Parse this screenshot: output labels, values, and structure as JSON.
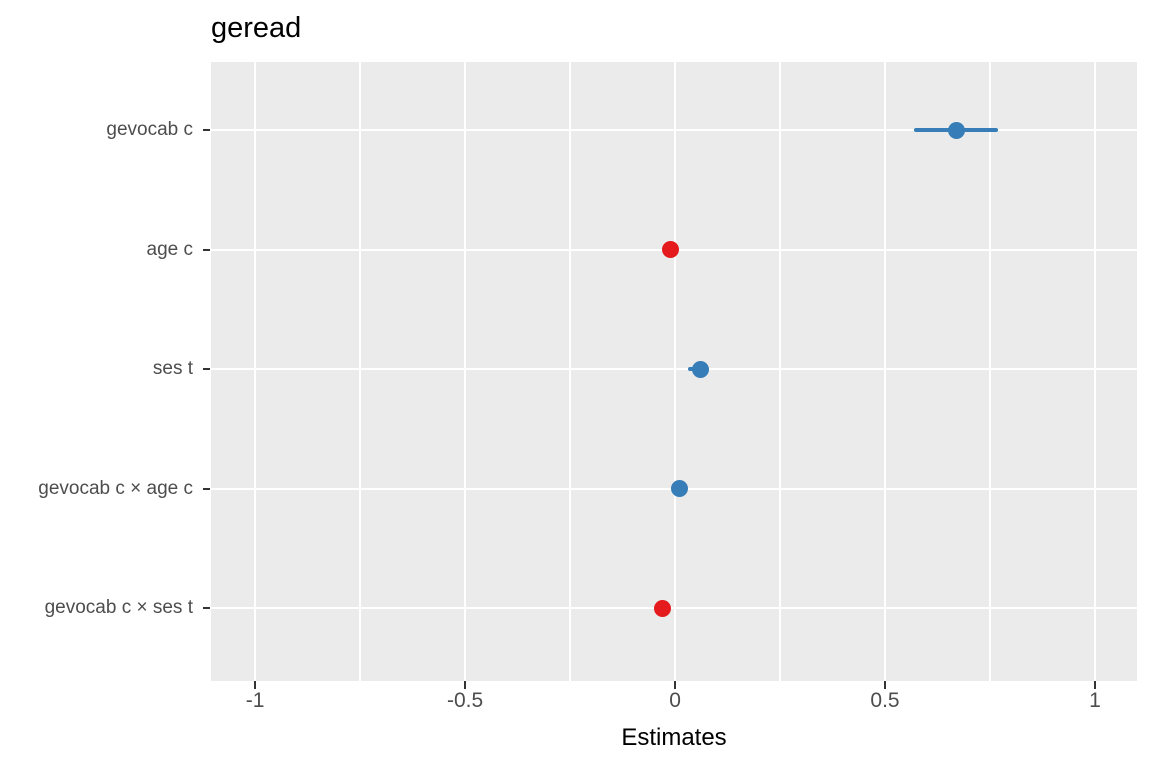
{
  "title": "geread",
  "chart_data": {
    "type": "scatter",
    "subtype": "coefficient-dot-whisker-plot",
    "title": "geread",
    "xlabel": "Estimates",
    "ylabel": "",
    "legend": "none",
    "grid": "on",
    "categories": [
      "gevocab c",
      "age c",
      "ses t",
      "gevocab c × age c",
      "gevocab c × ses t"
    ],
    "points": [
      {
        "term": "gevocab c",
        "estimate": 0.67,
        "ci_low": 0.57,
        "ci_high": 0.77,
        "direction": "positive"
      },
      {
        "term": "age c",
        "estimate": -0.01,
        "ci_low": -0.01,
        "ci_high": -0.01,
        "direction": "negative"
      },
      {
        "term": "ses t",
        "estimate": 0.06,
        "ci_low": 0.03,
        "ci_high": 0.08,
        "direction": "positive"
      },
      {
        "term": "gevocab c × age c",
        "estimate": 0.01,
        "ci_low": 0.01,
        "ci_high": 0.01,
        "direction": "positive"
      },
      {
        "term": "gevocab c × ses t",
        "estimate": -0.03,
        "ci_low": -0.03,
        "ci_high": -0.03,
        "direction": "negative"
      }
    ],
    "x_ticks": [
      {
        "value": -1,
        "label": "-1"
      },
      {
        "value": -0.5,
        "label": "-0.5"
      },
      {
        "value": 0,
        "label": "0"
      },
      {
        "value": 0.5,
        "label": "0.5"
      },
      {
        "value": 1,
        "label": "1"
      }
    ],
    "x_minor_ticks": [
      -0.75,
      -0.25,
      0.25,
      0.75
    ],
    "xlim": [
      -1.105,
      1.1
    ],
    "colors": {
      "positive": "#377EB8",
      "negative": "#E41A1C",
      "panel_bg": "#EBEBEB",
      "grid": "#FFFFFF",
      "axis_text": "#4D4D4D",
      "tick_mark": "#333333",
      "title_text": "#000000"
    }
  }
}
